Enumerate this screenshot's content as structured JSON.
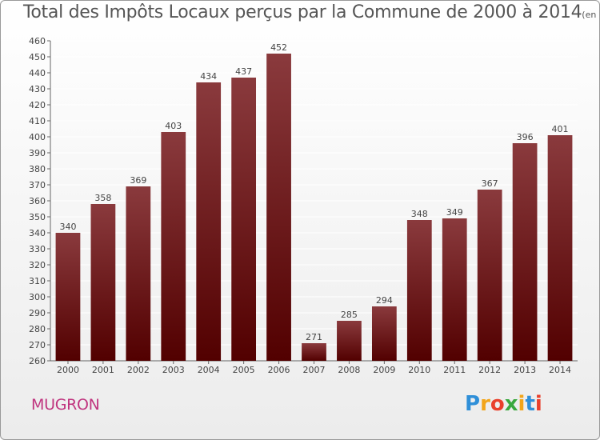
{
  "header": {
    "title": "Total des Impôts Locaux perçus par la Commune de 2000 à 2014",
    "unit": "(en milliers d'€)"
  },
  "commune": "MUGRON",
  "logo": {
    "letters": [
      "P",
      "r",
      "o",
      "x",
      "i",
      "t",
      "i"
    ],
    "colors": [
      "#2f8fd8",
      "#f2a51a",
      "#e9402c",
      "#3aa83e",
      "#f2a51a",
      "#2f8fd8",
      "#e9402c"
    ]
  },
  "colors": {
    "bar_top": "#8a3a3d",
    "bar_bottom": "#520000",
    "grid": "#ffffff",
    "text": "#444444"
  },
  "chart_data": {
    "type": "bar",
    "title": "Total des Impôts Locaux perçus par la Commune de 2000 à 2014",
    "xlabel": "",
    "ylabel": "",
    "unit": "(en milliers d'€)",
    "categories": [
      "2000",
      "2001",
      "2002",
      "2003",
      "2004",
      "2005",
      "2006",
      "2007",
      "2008",
      "2009",
      "2010",
      "2011",
      "2012",
      "2013",
      "2014"
    ],
    "values": [
      340,
      358,
      369,
      403,
      434,
      437,
      452,
      271,
      285,
      294,
      348,
      349,
      367,
      396,
      401
    ],
    "ylim": [
      260,
      460
    ],
    "ytick_step": 10,
    "grid": true,
    "legend": "none"
  }
}
